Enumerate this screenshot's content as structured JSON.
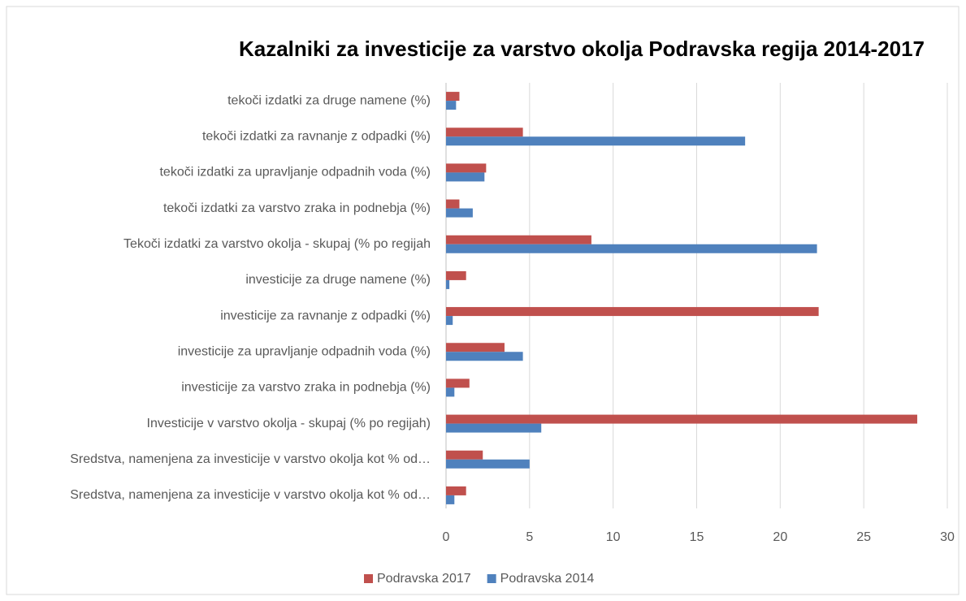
{
  "chart_data": {
    "type": "barh",
    "title": "Kazalniki za investicije za varstvo okolja Podravska regija 2014-2017",
    "categories": [
      "tekoči izdatki za druge namene (%)",
      "tekoči izdatki za ravnanje z odpadki (%)",
      "tekoči izdatki za upravljanje odpadnih voda (%)",
      "tekoči izdatki za varstvo zraka in podnebja (%)",
      "Tekoči izdatki za varstvo okolja - skupaj (% po regijah",
      "investicije za druge namene (%)",
      "investicije za ravnanje z odpadki (%)",
      "investicije za upravljanje odpadnih voda (%)",
      "investicije za varstvo zraka in podnebja (%)",
      "Investicije v varstvo okolja - skupaj (% po regijah)",
      "Sredstva, namenjena za investicije v varstvo okolja kot % od…",
      "Sredstva, namenjena za investicije v varstvo okolja kot % od…"
    ],
    "series": [
      {
        "name": "Podravska 2017",
        "color": "#c0504d",
        "values": [
          0.8,
          4.6,
          2.4,
          0.8,
          8.7,
          1.2,
          22.3,
          3.5,
          1.4,
          28.2,
          2.2,
          1.2
        ]
      },
      {
        "name": "Podravska 2014",
        "color": "#4f81bd",
        "values": [
          0.6,
          17.9,
          2.3,
          1.6,
          22.2,
          0.2,
          0.4,
          4.6,
          0.5,
          5.7,
          5.0,
          0.5
        ]
      }
    ],
    "xlim": [
      0,
      30
    ],
    "xticks": [
      0,
      5,
      10,
      15,
      20,
      25,
      30
    ],
    "grid": true,
    "legend": "bottom"
  }
}
